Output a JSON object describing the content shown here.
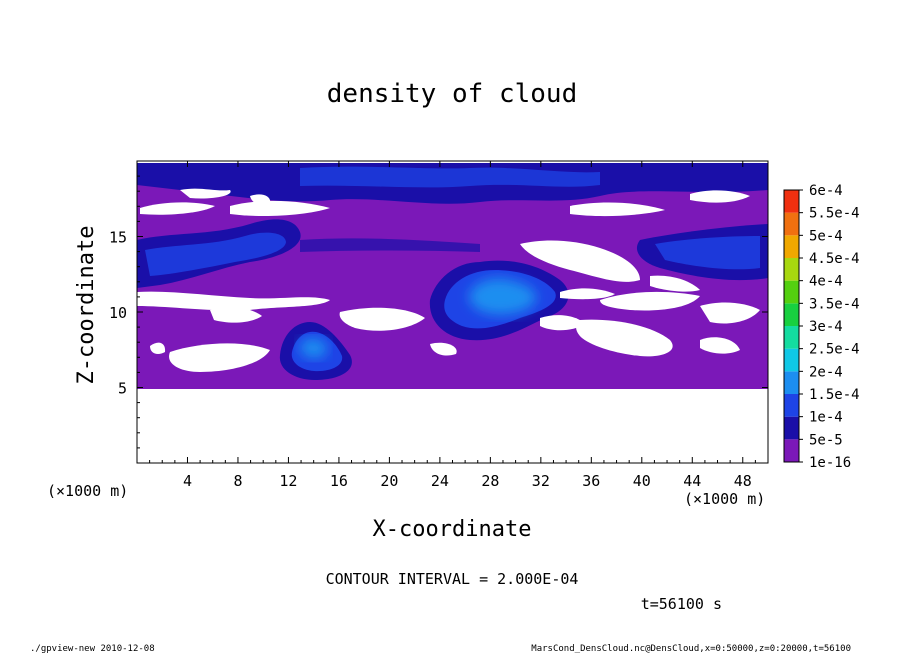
{
  "chart_data": {
    "type": "heatmap",
    "title": "density of cloud",
    "xlabel": "X-coordinate",
    "ylabel": "Z-coordinate",
    "x_unit": "(×1000 m)",
    "x_unit_right": "(×1000 m)",
    "xlim": [
      0,
      50
    ],
    "ylim": [
      0,
      20
    ],
    "xticks": [
      4,
      8,
      12,
      16,
      20,
      24,
      28,
      32,
      36,
      40,
      44,
      48
    ],
    "yticks": [
      5,
      10,
      15
    ],
    "grid": false,
    "colorbar": {
      "placement": "right",
      "levels": [
        "1e-16",
        "5e-5",
        "1e-4",
        "1.5e-4",
        "2e-4",
        "2.5e-4",
        "3e-4",
        "3.5e-4",
        "4e-4",
        "4.5e-4",
        "5e-4",
        "5.5e-4",
        "6e-4"
      ],
      "colors": [
        "#7b18b8",
        "#1a0fa8",
        "#1e44e6",
        "#1c8ef0",
        "#10c8e6",
        "#14dca0",
        "#18d040",
        "#54d010",
        "#a8d810",
        "#f0a800",
        "#f07010",
        "#f03010",
        "#f87878"
      ]
    },
    "regions": [
      {
        "name": "low_density_layer",
        "xlim": [
          0,
          50
        ],
        "zlim": [
          4.7,
          19
        ],
        "level": "1e-16"
      },
      {
        "name": "clear_lower",
        "xlim": [
          0,
          50
        ],
        "zlim": [
          0,
          4.7
        ],
        "level": "none"
      },
      {
        "name": "dense_core",
        "xlim": [
          24,
          33
        ],
        "zlim": [
          8,
          13
        ],
        "level": "1.5e-4"
      },
      {
        "name": "dense_patch_left",
        "xlim": [
          12,
          16
        ],
        "zlim": [
          5.5,
          8.5
        ],
        "level": "1.5e-4"
      },
      {
        "name": "band_upper",
        "xlim": [
          0,
          50
        ],
        "zlim": [
          16.5,
          19
        ],
        "level": "5e-5"
      },
      {
        "name": "band_right",
        "xlim": [
          42,
          50
        ],
        "zlim": [
          11.5,
          15
        ],
        "level": "1e-4"
      }
    ],
    "annotations": {
      "contour_interval": "CONTOUR INTERVAL = 2.000E-04",
      "time": "t=56100 s",
      "footer_left": "./gpview-new  2010-12-08",
      "footer_right": "MarsCond_DensCloud.nc@DensCloud,x=0:50000,z=0:20000,t=56100"
    }
  }
}
